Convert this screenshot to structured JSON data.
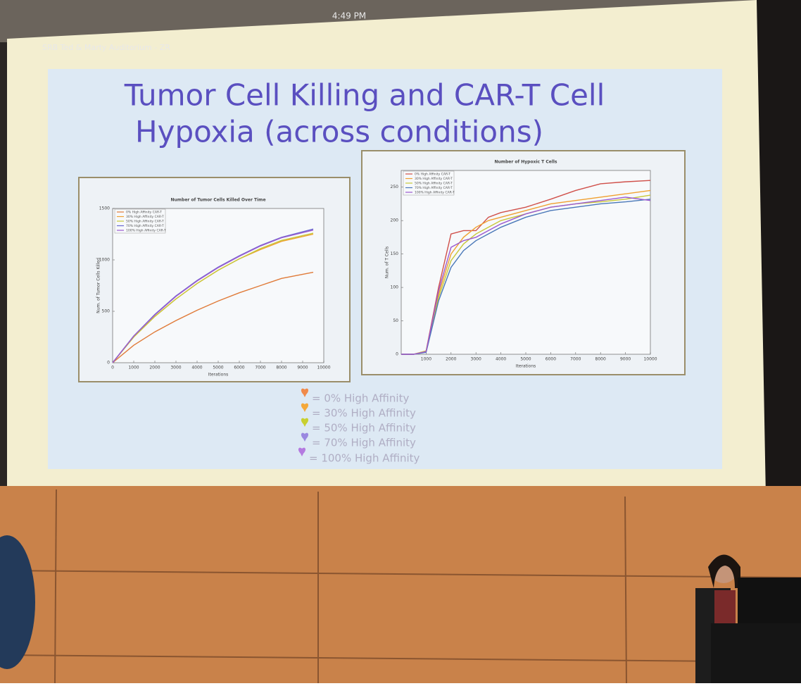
{
  "header": {
    "clock": "4:49 PM",
    "room": "SRB Ted & Marty Auditorium - ZR"
  },
  "slide": {
    "title": [
      "Tumor Cell Killing and CAR-T Cell",
      "Hypoxia (across conditions)"
    ],
    "legend": [
      "= 0% High Affinity",
      "= 30% High Affinity",
      "= 50% High Affinity",
      "= 70% High Affinity",
      "= 100% High Affinity"
    ]
  },
  "chart_data": [
    {
      "type": "line",
      "title": "Number of Tumor Cells Killed Over Time",
      "x_label": "Iterations",
      "y_label": "Num. of Tumor Cells Killed",
      "x": [
        0,
        1000,
        2000,
        3000,
        4000,
        5000,
        6000,
        7000,
        8000,
        9500
      ],
      "xlim": [
        0,
        10000
      ],
      "xticks": [
        0,
        1000,
        2000,
        3000,
        4000,
        5000,
        6000,
        7000,
        8000,
        9000,
        10000
      ],
      "ylim": [
        0,
        1500
      ],
      "yticks": [
        0,
        500,
        1000,
        1500
      ],
      "series": [
        {
          "name": "0% High Affinity CAR-T",
          "color": "#e07b39",
          "values": [
            0,
            170,
            300,
            410,
            510,
            600,
            680,
            750,
            820,
            880
          ]
        },
        {
          "name": "30% High Affinity CAR-T",
          "color": "#f0a030",
          "values": [
            0,
            250,
            450,
            620,
            770,
            900,
            1010,
            1100,
            1180,
            1250
          ]
        },
        {
          "name": "50% High Affinity CAR-T",
          "color": "#c8c83a",
          "values": [
            0,
            250,
            450,
            620,
            770,
            900,
            1010,
            1110,
            1190,
            1260
          ]
        },
        {
          "name": "70% High Affinity CAR-T",
          "color": "#6a6ad0",
          "values": [
            0,
            260,
            470,
            650,
            800,
            930,
            1040,
            1140,
            1220,
            1300
          ]
        },
        {
          "name": "100% High Affinity CAR-T",
          "color": "#9b59d0",
          "values": [
            0,
            260,
            465,
            645,
            795,
            925,
            1035,
            1135,
            1215,
            1290
          ]
        }
      ]
    },
    {
      "type": "line",
      "title": "Number of Hypoxic T Cells",
      "x_label": "Iterations",
      "y_label": "Num. of T Cells",
      "x": [
        0,
        500,
        1000,
        1500,
        2000,
        2500,
        3000,
        3500,
        4000,
        5000,
        6000,
        7000,
        8000,
        9000,
        10000
      ],
      "xlim": [
        0,
        10000
      ],
      "xticks": [
        1000,
        2000,
        3000,
        4000,
        5000,
        6000,
        7000,
        8000,
        9000,
        10000
      ],
      "ylim": [
        0,
        275
      ],
      "yticks": [
        0,
        50,
        100,
        150,
        200,
        250
      ],
      "series": [
        {
          "name": "0% High Affinity CAR-T",
          "color": "#d0504a",
          "values": [
            0,
            0,
            5,
            100,
            180,
            185,
            185,
            205,
            212,
            220,
            232,
            245,
            255,
            258,
            260
          ]
        },
        {
          "name": "30% High Affinity CAR-T",
          "color": "#f0a030",
          "values": [
            0,
            0,
            5,
            90,
            150,
            175,
            190,
            200,
            205,
            215,
            225,
            230,
            235,
            240,
            245
          ]
        },
        {
          "name": "50% High Affinity CAR-T",
          "color": "#c8c83a",
          "values": [
            0,
            0,
            5,
            85,
            140,
            165,
            180,
            190,
            200,
            210,
            220,
            225,
            228,
            232,
            238
          ]
        },
        {
          "name": "70% High Affinity CAR-T",
          "color": "#4a78b8",
          "values": [
            0,
            0,
            3,
            80,
            130,
            155,
            170,
            180,
            190,
            205,
            215,
            220,
            225,
            228,
            232
          ]
        },
        {
          "name": "100% High Affinity CAR-T",
          "color": "#9b59d0",
          "values": [
            0,
            0,
            4,
            95,
            160,
            170,
            175,
            185,
            195,
            210,
            220,
            225,
            230,
            235,
            230
          ]
        }
      ]
    }
  ]
}
